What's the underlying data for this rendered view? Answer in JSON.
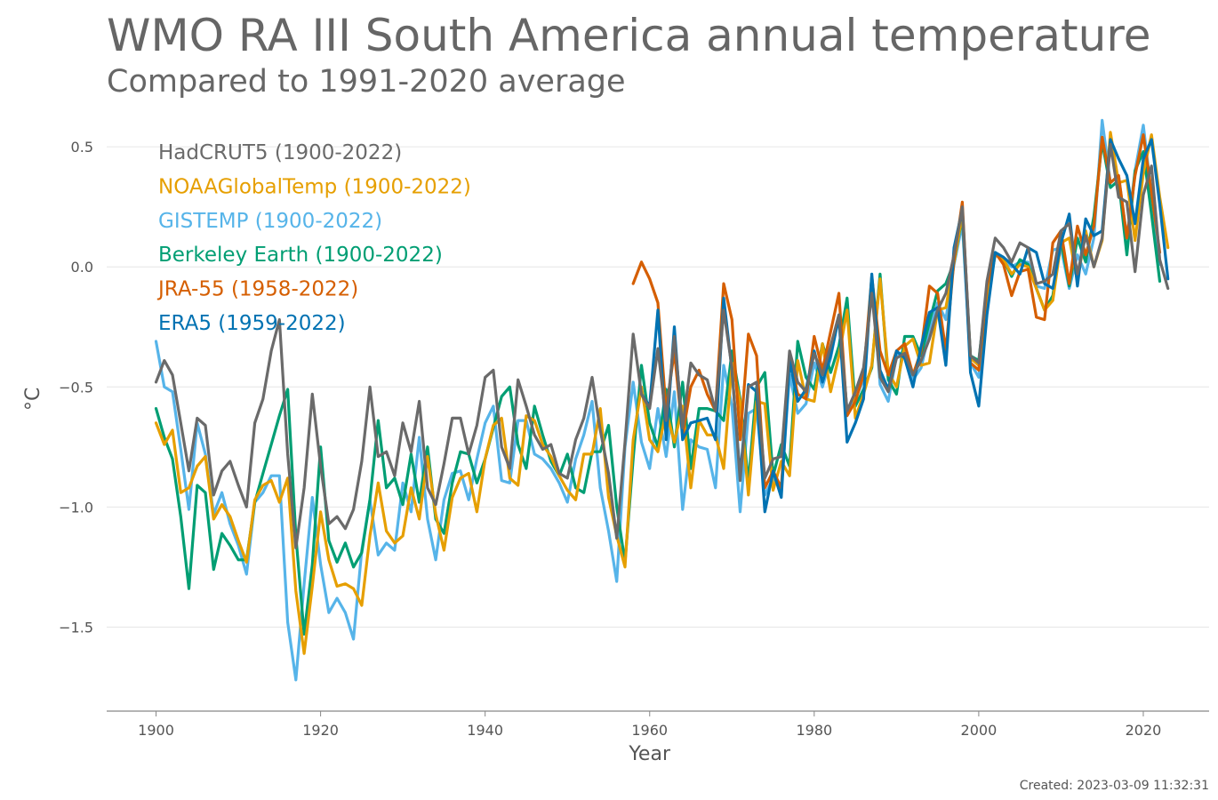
{
  "title": "WMO RA III South America annual temperature",
  "subtitle": "Compared to 1991-2020 average",
  "created": "Created: 2023-03-09 11:32:31",
  "chart_data": {
    "type": "line",
    "title": "WMO RA III South America annual temperature",
    "subtitle": "Compared to 1991-2020 average",
    "xlabel": "Year",
    "ylabel": "°C",
    "xlim": [
      1894,
      2028
    ],
    "ylim": [
      -1.85,
      0.63
    ],
    "xticks": [
      1900,
      1920,
      1940,
      1960,
      1980,
      2000,
      2020
    ],
    "yticks": [
      0.5,
      0.0,
      -0.5,
      -1.0,
      -1.5
    ],
    "ytick_labels": [
      "0.5",
      "0.0",
      "−0.5",
      "−1.0",
      "−1.5"
    ],
    "grid": "horizontal",
    "legend_placement": "top-left",
    "series": [
      {
        "name": "GISTEMP (1900-2022)",
        "color": "#56b4e9",
        "start": 1900,
        "values": [
          -0.31,
          -0.5,
          -0.52,
          -0.76,
          -1.01,
          -0.65,
          -0.78,
          -1.03,
          -0.94,
          -1.07,
          -1.16,
          -1.28,
          -0.98,
          -0.94,
          -0.87,
          -0.87,
          -1.48,
          -1.72,
          -1.32,
          -0.96,
          -1.24,
          -1.44,
          -1.38,
          -1.44,
          -1.55,
          -1.18,
          -0.97,
          -1.2,
          -1.15,
          -1.18,
          -0.9,
          -1.02,
          -0.71,
          -1.05,
          -1.22,
          -0.97,
          -0.86,
          -0.85,
          -0.97,
          -0.8,
          -0.65,
          -0.58,
          -0.89,
          -0.9,
          -0.64,
          -0.64,
          -0.78,
          -0.8,
          -0.84,
          -0.9,
          -0.98,
          -0.8,
          -0.7,
          -0.56,
          -0.92,
          -1.1,
          -1.31,
          -0.75,
          -0.48,
          -0.73,
          -0.84,
          -0.59,
          -0.79,
          -0.52,
          -1.01,
          -0.72,
          -0.75,
          -0.76,
          -0.92,
          -0.41,
          -0.58,
          -1.02,
          -0.61,
          -0.59,
          -0.95,
          -0.88,
          -0.93,
          -0.45,
          -0.61,
          -0.57,
          -0.4,
          -0.5,
          -0.38,
          -0.2,
          -0.6,
          -0.55,
          -0.47,
          -0.05,
          -0.49,
          -0.56,
          -0.37,
          -0.35,
          -0.47,
          -0.42,
          -0.27,
          -0.15,
          -0.22,
          0.01,
          0.18,
          -0.4,
          -0.46,
          -0.13,
          0.05,
          0.03,
          0.0,
          0.02,
          0.02,
          -0.08,
          -0.09,
          0.07,
          0.08,
          -0.09,
          0.05,
          -0.03,
          0.12,
          0.61,
          0.35,
          0.38,
          0.12,
          0.4,
          0.59,
          0.3,
          0.01
        ]
      },
      {
        "name": "Berkeley Earth (1900-2022)",
        "color": "#009e73",
        "start": 1900,
        "values": [
          -0.59,
          -0.71,
          -0.8,
          -1.04,
          -1.34,
          -0.91,
          -0.94,
          -1.26,
          -1.11,
          -1.16,
          -1.22,
          -1.22,
          -0.98,
          -0.86,
          -0.74,
          -0.62,
          -0.51,
          -1.12,
          -1.53,
          -1.24,
          -0.75,
          -1.14,
          -1.23,
          -1.15,
          -1.25,
          -1.19,
          -0.97,
          -0.64,
          -0.92,
          -0.88,
          -0.99,
          -0.78,
          -0.98,
          -0.75,
          -1.05,
          -1.11,
          -0.9,
          -0.77,
          -0.78,
          -0.9,
          -0.8,
          -0.67,
          -0.54,
          -0.5,
          -0.74,
          -0.84,
          -0.58,
          -0.7,
          -0.81,
          -0.87,
          -0.78,
          -0.92,
          -0.94,
          -0.77,
          -0.77,
          -0.66,
          -1.0,
          -1.23,
          -0.8,
          -0.41,
          -0.65,
          -0.75,
          -0.51,
          -0.75,
          -0.48,
          -0.84,
          -0.59,
          -0.59,
          -0.6,
          -0.64,
          -0.35,
          -0.55,
          -0.9,
          -0.5,
          -0.44,
          -0.87,
          -0.74,
          -0.83,
          -0.31,
          -0.46,
          -0.51,
          -0.32,
          -0.44,
          -0.33,
          -0.13,
          -0.58,
          -0.51,
          -0.42,
          -0.03,
          -0.47,
          -0.53,
          -0.29,
          -0.29,
          -0.37,
          -0.23,
          -0.1,
          -0.07,
          0.02,
          0.21,
          -0.37,
          -0.39,
          -0.09,
          0.06,
          0.03,
          -0.04,
          0.03,
          0.01,
          -0.09,
          -0.18,
          -0.12,
          0.11,
          -0.08,
          0.12,
          0.02,
          0.21,
          0.52,
          0.33,
          0.36,
          0.05,
          0.4,
          0.48,
          0.22,
          -0.06
        ]
      },
      {
        "name": "NOAAGlobalTemp (1900-2022)",
        "color": "#e69f00",
        "start": 1900,
        "values": [
          -0.65,
          -0.74,
          -0.68,
          -0.94,
          -0.92,
          -0.83,
          -0.79,
          -1.05,
          -0.99,
          -1.04,
          -1.14,
          -1.23,
          -0.97,
          -0.91,
          -0.89,
          -0.98,
          -0.88,
          -1.35,
          -1.61,
          -1.33,
          -1.02,
          -1.22,
          -1.33,
          -1.32,
          -1.34,
          -1.41,
          -1.12,
          -0.9,
          -1.1,
          -1.15,
          -1.12,
          -0.92,
          -1.05,
          -0.79,
          -1.03,
          -1.18,
          -0.96,
          -0.88,
          -0.86,
          -1.02,
          -0.8,
          -0.66,
          -0.63,
          -0.88,
          -0.91,
          -0.62,
          -0.64,
          -0.74,
          -0.79,
          -0.87,
          -0.93,
          -0.97,
          -0.78,
          -0.78,
          -0.59,
          -0.96,
          -1.12,
          -1.25,
          -0.72,
          -0.5,
          -0.72,
          -0.77,
          -0.6,
          -0.73,
          -0.58,
          -0.92,
          -0.64,
          -0.7,
          -0.7,
          -0.84,
          -0.4,
          -0.56,
          -0.95,
          -0.56,
          -0.57,
          -0.93,
          -0.81,
          -0.87,
          -0.39,
          -0.55,
          -0.56,
          -0.32,
          -0.52,
          -0.37,
          -0.18,
          -0.63,
          -0.53,
          -0.41,
          -0.05,
          -0.44,
          -0.5,
          -0.33,
          -0.3,
          -0.41,
          -0.4,
          -0.18,
          -0.17,
          0.02,
          0.22,
          -0.38,
          -0.41,
          -0.14,
          0.05,
          0.03,
          -0.03,
          0.01,
          0.0,
          -0.09,
          -0.18,
          -0.14,
          0.1,
          0.12,
          -0.06,
          0.15,
          0.0,
          0.11,
          0.56,
          0.35,
          0.36,
          0.11,
          0.39,
          0.55,
          0.29,
          0.08
        ]
      },
      {
        "name": "JRA-55 (1958-2022)",
        "color": "#d55e00",
        "start": 1958,
        "values": [
          -0.07,
          0.02,
          -0.05,
          -0.15,
          -0.6,
          -0.35,
          -0.7,
          -0.5,
          -0.43,
          -0.53,
          -0.6,
          -0.07,
          -0.22,
          -0.72,
          -0.28,
          -0.37,
          -0.92,
          -0.85,
          -0.92,
          -0.38,
          -0.53,
          -0.55,
          -0.29,
          -0.43,
          -0.27,
          -0.11,
          -0.62,
          -0.56,
          -0.45,
          -0.04,
          -0.35,
          -0.45,
          -0.35,
          -0.32,
          -0.45,
          -0.35,
          -0.08,
          -0.11,
          -0.35,
          0.03,
          0.27,
          -0.4,
          -0.43,
          -0.08,
          0.06,
          0.01,
          -0.12,
          -0.02,
          -0.01,
          -0.21,
          -0.22,
          0.1,
          0.15,
          -0.07,
          0.17,
          0.05,
          0.17,
          0.54,
          0.35,
          0.38,
          0.12,
          0.38,
          0.55,
          0.31,
          0.06
        ]
      },
      {
        "name": "ERA5 (1959-2022)",
        "color": "#0072b2",
        "start": 1959,
        "values": [
          -0.53,
          -0.58,
          -0.18,
          -0.72,
          -0.25,
          -0.72,
          -0.65,
          -0.64,
          -0.63,
          -0.72,
          -0.13,
          -0.43,
          -0.87,
          -0.49,
          -0.52,
          -1.02,
          -0.85,
          -0.96,
          -0.39,
          -0.56,
          -0.51,
          -0.35,
          -0.48,
          -0.37,
          -0.21,
          -0.73,
          -0.65,
          -0.55,
          -0.03,
          -0.43,
          -0.51,
          -0.35,
          -0.38,
          -0.5,
          -0.33,
          -0.19,
          -0.17,
          -0.41,
          0.08,
          0.24,
          -0.44,
          -0.58,
          -0.2,
          0.06,
          0.04,
          0.01,
          -0.03,
          0.08,
          0.06,
          -0.07,
          -0.09,
          0.1,
          0.22,
          -0.08,
          0.2,
          0.13,
          0.15,
          0.53,
          0.45,
          0.38,
          0.18,
          0.45,
          0.53,
          0.26,
          -0.05
        ]
      },
      {
        "name": "HadCRUT5 (1900-2022)",
        "color": "#6a6a6a",
        "start": 1900,
        "values": [
          -0.48,
          -0.39,
          -0.45,
          -0.65,
          -0.85,
          -0.63,
          -0.66,
          -0.95,
          -0.85,
          -0.81,
          -0.91,
          -1.0,
          -0.65,
          -0.55,
          -0.35,
          -0.22,
          -0.78,
          -1.17,
          -0.92,
          -0.53,
          -0.83,
          -1.07,
          -1.04,
          -1.09,
          -1.01,
          -0.81,
          -0.5,
          -0.79,
          -0.77,
          -0.87,
          -0.65,
          -0.77,
          -0.56,
          -0.92,
          -0.99,
          -0.82,
          -0.63,
          -0.63,
          -0.78,
          -0.66,
          -0.46,
          -0.43,
          -0.75,
          -0.84,
          -0.47,
          -0.58,
          -0.7,
          -0.76,
          -0.74,
          -0.86,
          -0.88,
          -0.72,
          -0.63,
          -0.46,
          -0.68,
          -0.86,
          -1.13,
          -0.73,
          -0.28,
          -0.53,
          -0.59,
          -0.34,
          -0.64,
          -0.29,
          -0.67,
          -0.4,
          -0.45,
          -0.47,
          -0.6,
          -0.18,
          -0.42,
          -0.89,
          -0.5,
          -0.48,
          -0.88,
          -0.8,
          -0.79,
          -0.35,
          -0.48,
          -0.52,
          -0.36,
          -0.45,
          -0.33,
          -0.2,
          -0.6,
          -0.52,
          -0.42,
          -0.11,
          -0.46,
          -0.52,
          -0.38,
          -0.36,
          -0.45,
          -0.39,
          -0.3,
          -0.18,
          -0.11,
          0.05,
          0.25,
          -0.37,
          -0.4,
          -0.06,
          0.12,
          0.08,
          0.02,
          0.1,
          0.08,
          -0.07,
          -0.06,
          -0.03,
          0.15,
          0.18,
          -0.03,
          0.13,
          0.0,
          0.12,
          0.51,
          0.29,
          0.27,
          -0.02,
          0.3,
          0.42,
          0.03,
          -0.09
        ]
      }
    ],
    "legend": [
      {
        "label": "HadCRUT5 (1900-2022)",
        "color": "#6a6a6a"
      },
      {
        "label": "NOAAGlobalTemp (1900-2022)",
        "color": "#e69f00"
      },
      {
        "label": "GISTEMP (1900-2022)",
        "color": "#56b4e9"
      },
      {
        "label": "Berkeley Earth (1900-2022)",
        "color": "#009e73"
      },
      {
        "label": "JRA-55 (1958-2022)",
        "color": "#d55e00"
      },
      {
        "label": "ERA5 (1959-2022)",
        "color": "#0072b2"
      }
    ]
  }
}
